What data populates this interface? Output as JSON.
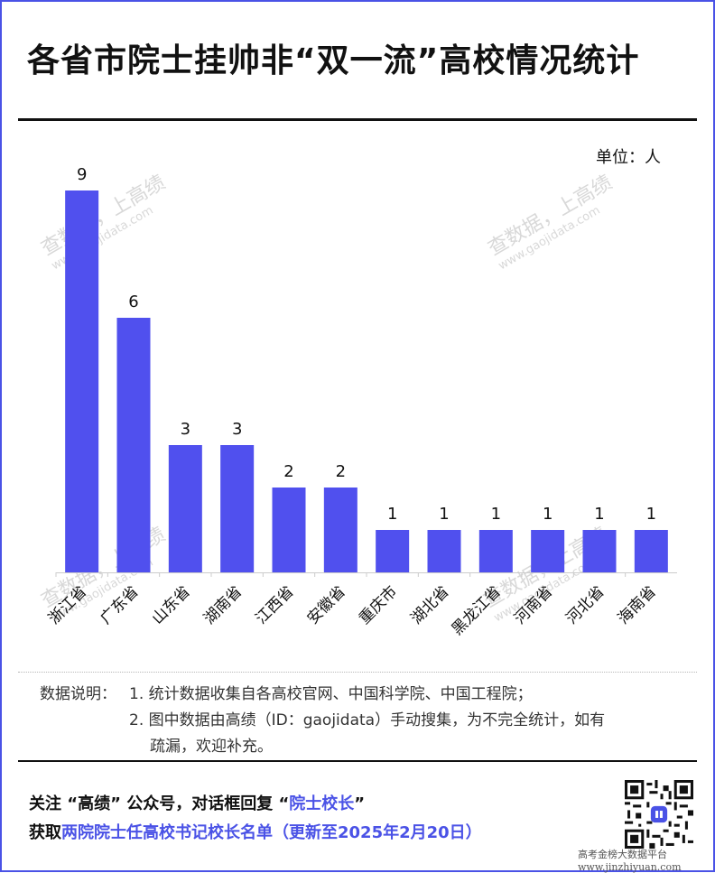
{
  "title": "各省市院士挂帅非“双一流”高校情况统计",
  "unit_label": "单位：人",
  "chart_data": {
    "type": "bar",
    "categories": [
      "浙江省",
      "广东省",
      "山东省",
      "湖南省",
      "江西省",
      "安徽省",
      "重庆市",
      "湖北省",
      "黑龙江省",
      "河南省",
      "河北省",
      "海南省"
    ],
    "values": [
      9,
      6,
      3,
      3,
      2,
      2,
      1,
      1,
      1,
      1,
      1,
      1
    ],
    "title": "各省市院士挂帅非“双一流”高校情况统计",
    "xlabel": "",
    "ylabel": "",
    "ylim": [
      0,
      9
    ],
    "grid": false,
    "bar_color": "#5050ee"
  },
  "notes": {
    "prefix": "数据说明：",
    "line1": "1. 统计数据收集自各高校官网、中国科学院、中国工程院；",
    "line2": "2. 图中数据由高绩（ID：gaojidata）手动搜集，为不完全统计，如有",
    "line3": "疏漏，欢迎补充。"
  },
  "footer": {
    "line1_prefix": "关注 “高绩” 公众号，对话框回复 “",
    "line1_keyword": "院士校长",
    "line1_suffix": "”",
    "line2_prefix": "获取",
    "line2_highlight": "两院院士任高校书记校长名单（更新至2025年2月20日）"
  },
  "watermark": {
    "text": "查数据，上高绩",
    "url": "www.gaojidata.com"
  },
  "site": {
    "name": "高考金榜大数据平台",
    "url": "www.jinzhiyuan.com"
  },
  "colors": {
    "accent": "#4a52e6",
    "bar": "#5050ee"
  },
  "icons": [
    "qr-code-icon"
  ]
}
